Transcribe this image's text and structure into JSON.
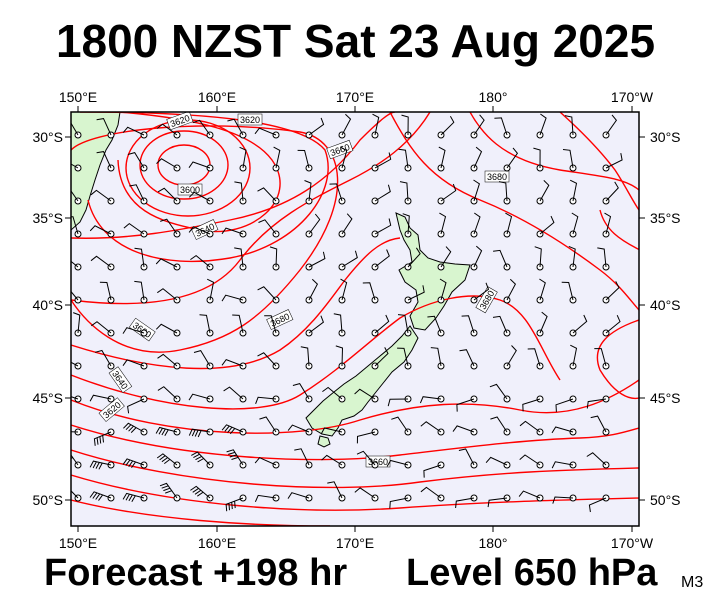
{
  "header": {
    "title": "1800 NZST Sat 23 Aug 2025"
  },
  "footer": {
    "forecast": "Forecast +198 hr",
    "level": "Level 650 hPa",
    "model": "M3"
  },
  "axes": {
    "lon_labels": [
      "150°E",
      "160°E",
      "170°E",
      "180°",
      "170°W"
    ],
    "lat_labels": [
      "30°S",
      "35°S",
      "40°S",
      "45°S",
      "50°S"
    ]
  },
  "contour_labels": [
    "3620",
    "3620",
    "3600",
    "3640",
    "3660",
    "3680",
    "3680",
    "3660",
    "3640",
    "3620",
    "3680",
    "3660"
  ],
  "colors": {
    "ocean": "#f0f0fb",
    "land": "#d8f5cf",
    "contour": "#ff0000",
    "barb": "#000000"
  },
  "icons": [
    "wind-barb-icon",
    "calm-circle-icon"
  ]
}
